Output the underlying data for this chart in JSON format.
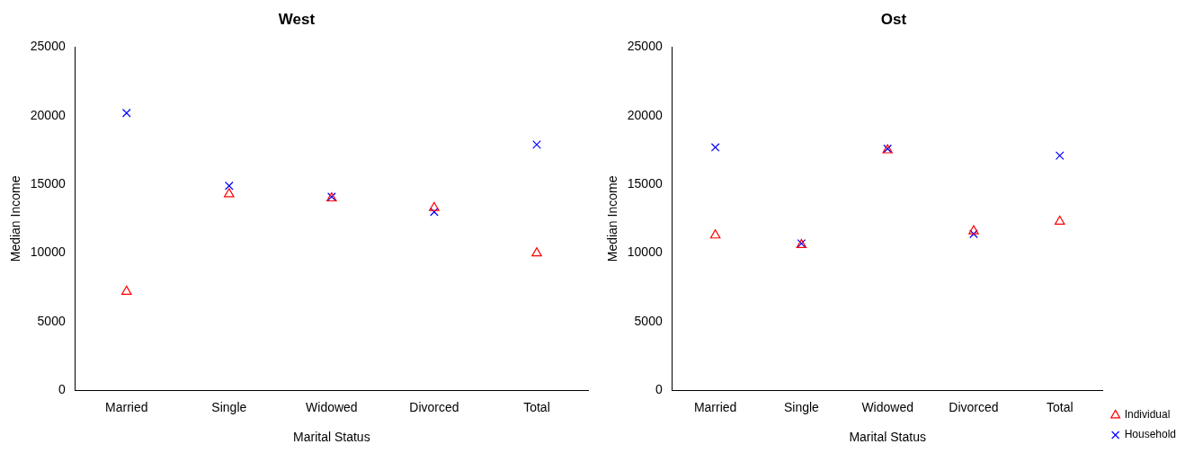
{
  "chart_data": [
    {
      "type": "scatter",
      "title": "West",
      "xlabel": "Marital Status",
      "ylabel": "Median Income",
      "categories": [
        "Married",
        "Single",
        "Widowed",
        "Divorced",
        "Total"
      ],
      "ylim": [
        0,
        25000
      ],
      "yticks": [
        0,
        5000,
        10000,
        15000,
        20000,
        25000
      ],
      "grid": false,
      "legend": false,
      "series": [
        {
          "color": "#ff0000",
          "marker": "triangle",
          "values": [
            7200,
            14300,
            14000,
            13300,
            10000
          ]
        },
        {
          "color": "#0000ff",
          "marker": "cross",
          "values": [
            20200,
            14900,
            14100,
            13000,
            17900
          ]
        }
      ]
    },
    {
      "type": "scatter",
      "title": "Ost",
      "xlabel": "Marital Status",
      "ylabel": "Median Income",
      "categories": [
        "Married",
        "Single",
        "Widowed",
        "Divorced",
        "Total"
      ],
      "ylim": [
        0,
        25000
      ],
      "yticks": [
        0,
        5000,
        10000,
        15000,
        20000,
        25000
      ],
      "grid": false,
      "legend": "bottom right",
      "series": [
        {
          "name": "Individual",
          "color": "#ff0000",
          "marker": "triangle",
          "values": [
            11300,
            10600,
            17500,
            11600,
            12300
          ]
        },
        {
          "name": "Household",
          "color": "#0000ff",
          "marker": "cross",
          "values": [
            17700,
            10700,
            17600,
            11400,
            17100
          ]
        }
      ]
    }
  ]
}
